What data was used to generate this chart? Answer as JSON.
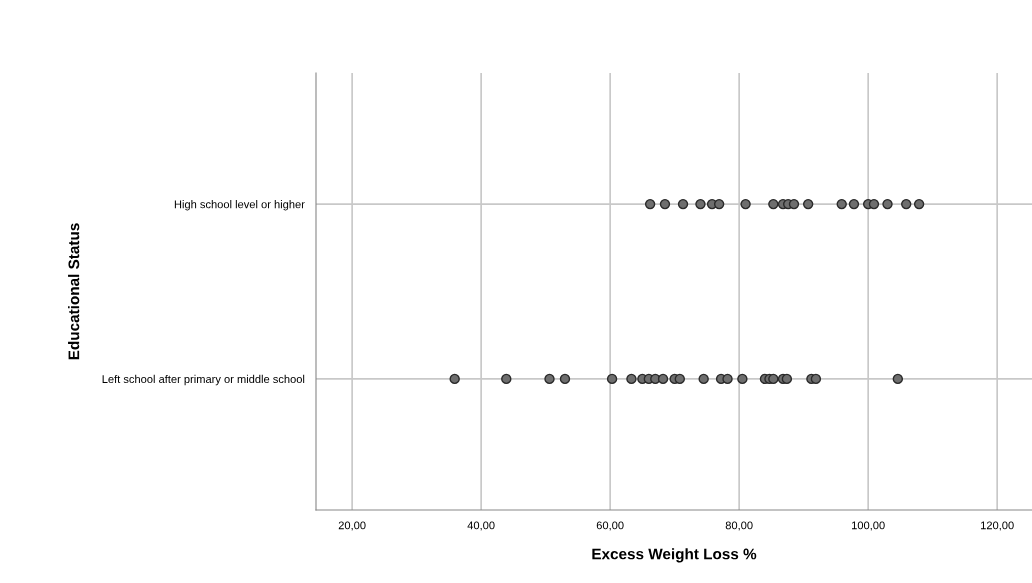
{
  "chart_data": {
    "type": "scatter",
    "orientation": "horizontal",
    "xlabel": "Excess Weight Loss %",
    "ylabel": "Educational Status",
    "categories": [
      "High school level or higher",
      "Left school after primary or middle school"
    ],
    "xlim": [
      14.4,
      125.4
    ],
    "xticks": [
      {
        "value": 20,
        "label": "20,00"
      },
      {
        "value": 40,
        "label": "40,00"
      },
      {
        "value": 60,
        "label": "60,00"
      },
      {
        "value": 80,
        "label": "80,00"
      },
      {
        "value": 100,
        "label": "100,00"
      },
      {
        "value": 120,
        "label": "120,00"
      }
    ],
    "grid": true,
    "marker": "circle",
    "series": [
      {
        "color": "#6e6e6e",
        "x": [
          "High school level or higher",
          "High school level or higher",
          "High school level or higher",
          "High school level or higher",
          "High school level or higher",
          "High school level or higher",
          "High school level or higher",
          "High school level or higher",
          "High school level or higher",
          "High school level or higher",
          "High school level or higher",
          "High school level or higher",
          "High school level or higher",
          "High school level or higher",
          "High school level or higher",
          "High school level or higher",
          "High school level or higher",
          "High school level or higher",
          "High school level or higher"
        ],
        "values": [
          66.2,
          68.5,
          71.3,
          74.0,
          75.8,
          76.9,
          81.0,
          85.3,
          86.8,
          87.6,
          88.5,
          90.7,
          95.9,
          97.8,
          100.0,
          100.9,
          103.0,
          105.9,
          107.9
        ]
      },
      {
        "color": "#6e6e6e",
        "x": [
          "Left school after primary or middle school",
          "Left school after primary or middle school",
          "Left school after primary or middle school",
          "Left school after primary or middle school",
          "Left school after primary or middle school",
          "Left school after primary or middle school",
          "Left school after primary or middle school",
          "Left school after primary or middle school",
          "Left school after primary or middle school",
          "Left school after primary or middle school",
          "Left school after primary or middle school",
          "Left school after primary or middle school",
          "Left school after primary or middle school",
          "Left school after primary or middle school",
          "Left school after primary or middle school",
          "Left school after primary or middle school",
          "Left school after primary or middle school",
          "Left school after primary or middle school",
          "Left school after primary or middle school",
          "Left school after primary or middle school",
          "Left school after primary or middle school",
          "Left school after primary or middle school",
          "Left school after primary or middle school",
          "Left school after primary or middle school"
        ],
        "values": [
          35.9,
          43.9,
          50.6,
          53.0,
          60.3,
          63.3,
          65.0,
          66.0,
          67.0,
          68.2,
          70.0,
          70.8,
          74.5,
          77.2,
          78.2,
          80.5,
          84.0,
          84.7,
          85.3,
          86.8,
          87.4,
          91.2,
          91.9,
          104.6
        ]
      }
    ]
  }
}
